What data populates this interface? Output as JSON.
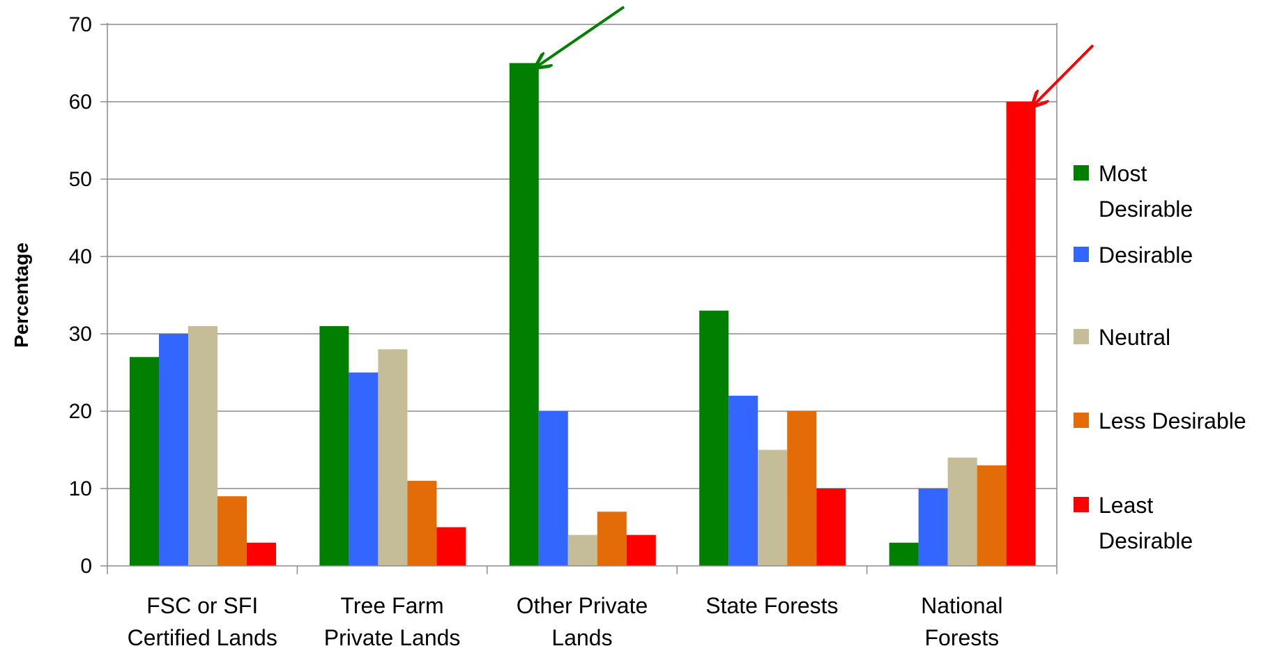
{
  "chart_data": {
    "type": "bar",
    "title": "",
    "xlabel": "",
    "ylabel": "Percentage",
    "ylim": [
      0,
      70
    ],
    "yticks": [
      0,
      10,
      20,
      30,
      40,
      50,
      60,
      70
    ],
    "grid": "horizontal",
    "legend_position": "right",
    "categories": [
      [
        "FSC or SFI",
        "Certified Lands"
      ],
      [
        "Tree Farm",
        "Private Lands"
      ],
      [
        "Other Private",
        "Lands"
      ],
      [
        "State Forests"
      ],
      [
        "National",
        "Forests"
      ]
    ],
    "series": [
      {
        "name": [
          "Most",
          "Desirable"
        ],
        "color": "#007F00",
        "values": [
          27,
          31,
          65,
          33,
          3
        ]
      },
      {
        "name": [
          "Desirable"
        ],
        "color": "#3366FF",
        "values": [
          30,
          25,
          20,
          22,
          10
        ]
      },
      {
        "name": [
          "Neutral"
        ],
        "color": "#C4BD97",
        "values": [
          31,
          28,
          4,
          15,
          14
        ]
      },
      {
        "name": [
          "Less Desirable"
        ],
        "color": "#E36C09",
        "values": [
          9,
          11,
          7,
          20,
          13
        ]
      },
      {
        "name": [
          "Least",
          "Desirable"
        ],
        "color": "#FF0000",
        "values": [
          3,
          5,
          4,
          10,
          60
        ]
      }
    ],
    "annotations": [
      {
        "type": "arrow",
        "color": "#007F00",
        "points_to": {
          "category": 2,
          "series": 0
        }
      },
      {
        "type": "arrow",
        "color": "#FF0000",
        "points_to": {
          "category": 4,
          "series": 4
        }
      }
    ]
  }
}
